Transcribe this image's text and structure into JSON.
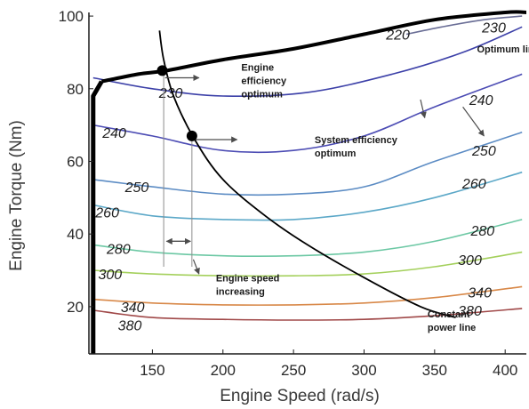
{
  "chart_data": {
    "type": "line",
    "xlabel": "Engine Speed (rad/s)",
    "ylabel": "Engine Torque (Nm)",
    "xlim": [
      105,
      415
    ],
    "ylim": [
      7,
      101
    ],
    "xticks": [
      150,
      200,
      250,
      300,
      350,
      400
    ],
    "yticks": [
      20,
      40,
      60,
      80,
      100
    ],
    "grid": false,
    "colors": {
      "axis": "#1a1a1a",
      "max_torque_line": "#000000",
      "constant_power_line": "#000000",
      "vertical_guides": "#8c8c8c",
      "arrows": "#4d4d4d",
      "optimum_point": "#000000"
    },
    "series": [
      {
        "name": "Maximum torque boundary",
        "stroke": "#000000",
        "x": [
          108,
          108,
          114,
          140,
          160,
          200,
          250,
          300,
          350,
          400,
          415
        ],
        "y": [
          7,
          78,
          82,
          84,
          85,
          88,
          91,
          95,
          99,
          101,
          101
        ]
      },
      {
        "name": "Constant power line",
        "stroke": "#000000",
        "x": [
          155,
          158,
          165,
          180,
          200,
          230,
          260,
          300,
          340,
          365
        ],
        "y": [
          96,
          88,
          78,
          66,
          55,
          45,
          37,
          28,
          20,
          17
        ]
      }
    ],
    "contours": [
      {
        "level": "220",
        "stroke": "#6a6e96",
        "x": [
          330,
          355,
          385,
          412
        ],
        "y": [
          95,
          97,
          99,
          100
        ],
        "labels": [
          {
            "text": "220",
            "x": 324,
            "y": 95
          }
        ]
      },
      {
        "level": "230",
        "stroke": "#3c40a8",
        "x": [
          108,
          150,
          200,
          260,
          320,
          370,
          412
        ],
        "y": [
          83,
          80,
          78,
          79,
          84,
          90,
          97
        ],
        "labels": [
          {
            "text": "230",
            "x": 163,
            "y": 79
          },
          {
            "text": "230",
            "x": 392,
            "y": 97
          }
        ]
      },
      {
        "level": "240",
        "stroke": "#4c4cb4",
        "x": [
          108,
          150,
          200,
          250,
          300,
          350,
          412
        ],
        "y": [
          70,
          67,
          63,
          63,
          67,
          75,
          84
        ],
        "labels": [
          {
            "text": "240",
            "x": 123,
            "y": 68
          },
          {
            "text": "240",
            "x": 383,
            "y": 77
          }
        ]
      },
      {
        "level": "250",
        "stroke": "#5c8cc4",
        "x": [
          108,
          150,
          200,
          250,
          300,
          350,
          412
        ],
        "y": [
          55,
          53,
          51,
          51,
          53,
          60,
          68
        ],
        "labels": [
          {
            "text": "250",
            "x": 139,
            "y": 53
          },
          {
            "text": "250",
            "x": 385,
            "y": 63
          }
        ]
      },
      {
        "level": "260",
        "stroke": "#5ca8c8",
        "x": [
          108,
          150,
          200,
          250,
          300,
          350,
          412
        ],
        "y": [
          48,
          45,
          44,
          44,
          46,
          50,
          57
        ],
        "labels": [
          {
            "text": "260",
            "x": 118,
            "y": 46
          },
          {
            "text": "260",
            "x": 378,
            "y": 54
          }
        ]
      },
      {
        "level": "280",
        "stroke": "#6cc8a4",
        "x": [
          108,
          150,
          200,
          250,
          300,
          350,
          412
        ],
        "y": [
          37,
          35,
          34,
          34,
          35,
          38,
          44
        ],
        "labels": [
          {
            "text": "280",
            "x": 126,
            "y": 36
          },
          {
            "text": "280",
            "x": 384,
            "y": 41
          }
        ]
      },
      {
        "level": "300",
        "stroke": "#a4d05c",
        "x": [
          108,
          150,
          200,
          250,
          300,
          350,
          412
        ],
        "y": [
          30,
          29,
          28.5,
          28.5,
          29,
          31,
          35
        ],
        "labels": [
          {
            "text": "300",
            "x": 120,
            "y": 29
          },
          {
            "text": "300",
            "x": 375,
            "y": 33
          }
        ]
      },
      {
        "level": "340",
        "stroke": "#d88848",
        "x": [
          108,
          150,
          200,
          250,
          300,
          350,
          412
        ],
        "y": [
          22,
          21,
          20.5,
          20.5,
          21,
          22.5,
          25.5
        ],
        "labels": [
          {
            "text": "340",
            "x": 136,
            "y": 20
          },
          {
            "text": "340",
            "x": 382,
            "y": 24
          }
        ]
      },
      {
        "level": "380",
        "stroke": "#a04848",
        "x": [
          108,
          150,
          200,
          250,
          300,
          350,
          412
        ],
        "y": [
          19,
          17,
          16.5,
          16.3,
          16.5,
          17.5,
          19.5
        ],
        "labels": [
          {
            "text": "380",
            "x": 134,
            "y": 15
          },
          {
            "text": "380",
            "x": 375,
            "y": 19
          }
        ]
      }
    ],
    "points": [
      {
        "name": "Engine efficiency optimum",
        "x": 157,
        "y": 85
      },
      {
        "name": "System efficiency optimum",
        "x": 178,
        "y": 67
      }
    ],
    "vertical_lines": [
      {
        "x": 158,
        "y0": 85,
        "y1": 31
      },
      {
        "x": 178,
        "y0": 67,
        "y1": 31
      }
    ],
    "arrows": [
      {
        "from": [
          159,
          83
        ],
        "to": [
          183,
          83
        ]
      },
      {
        "from": [
          179,
          66
        ],
        "to": [
          210,
          66
        ]
      },
      {
        "from": [
          161,
          38
        ],
        "to": [
          177,
          38
        ]
      },
      {
        "from": [
          176,
          38
        ],
        "to": [
          160,
          38
        ]
      },
      {
        "from": [
          179,
          33
        ],
        "to": [
          183,
          29
        ]
      },
      {
        "from": [
          370,
          75
        ],
        "to": [
          385,
          67
        ]
      },
      {
        "from": [
          340,
          77
        ],
        "to": [
          343,
          72
        ]
      }
    ],
    "annotations": [
      {
        "lines": [
          "Engine",
          "efficiency",
          "optimum"
        ],
        "x": 213,
        "y": 85
      },
      {
        "lines": [
          "System efficiency",
          "optimum"
        ],
        "x": 265,
        "y": 65
      },
      {
        "lines": [
          "Optimum line"
        ],
        "x": 380,
        "y": 90
      },
      {
        "lines": [
          "Engine speed",
          "increasing"
        ],
        "x": 195,
        "y": 27
      },
      {
        "lines": [
          "Constant",
          "power line"
        ],
        "x": 345,
        "y": 17
      }
    ]
  }
}
